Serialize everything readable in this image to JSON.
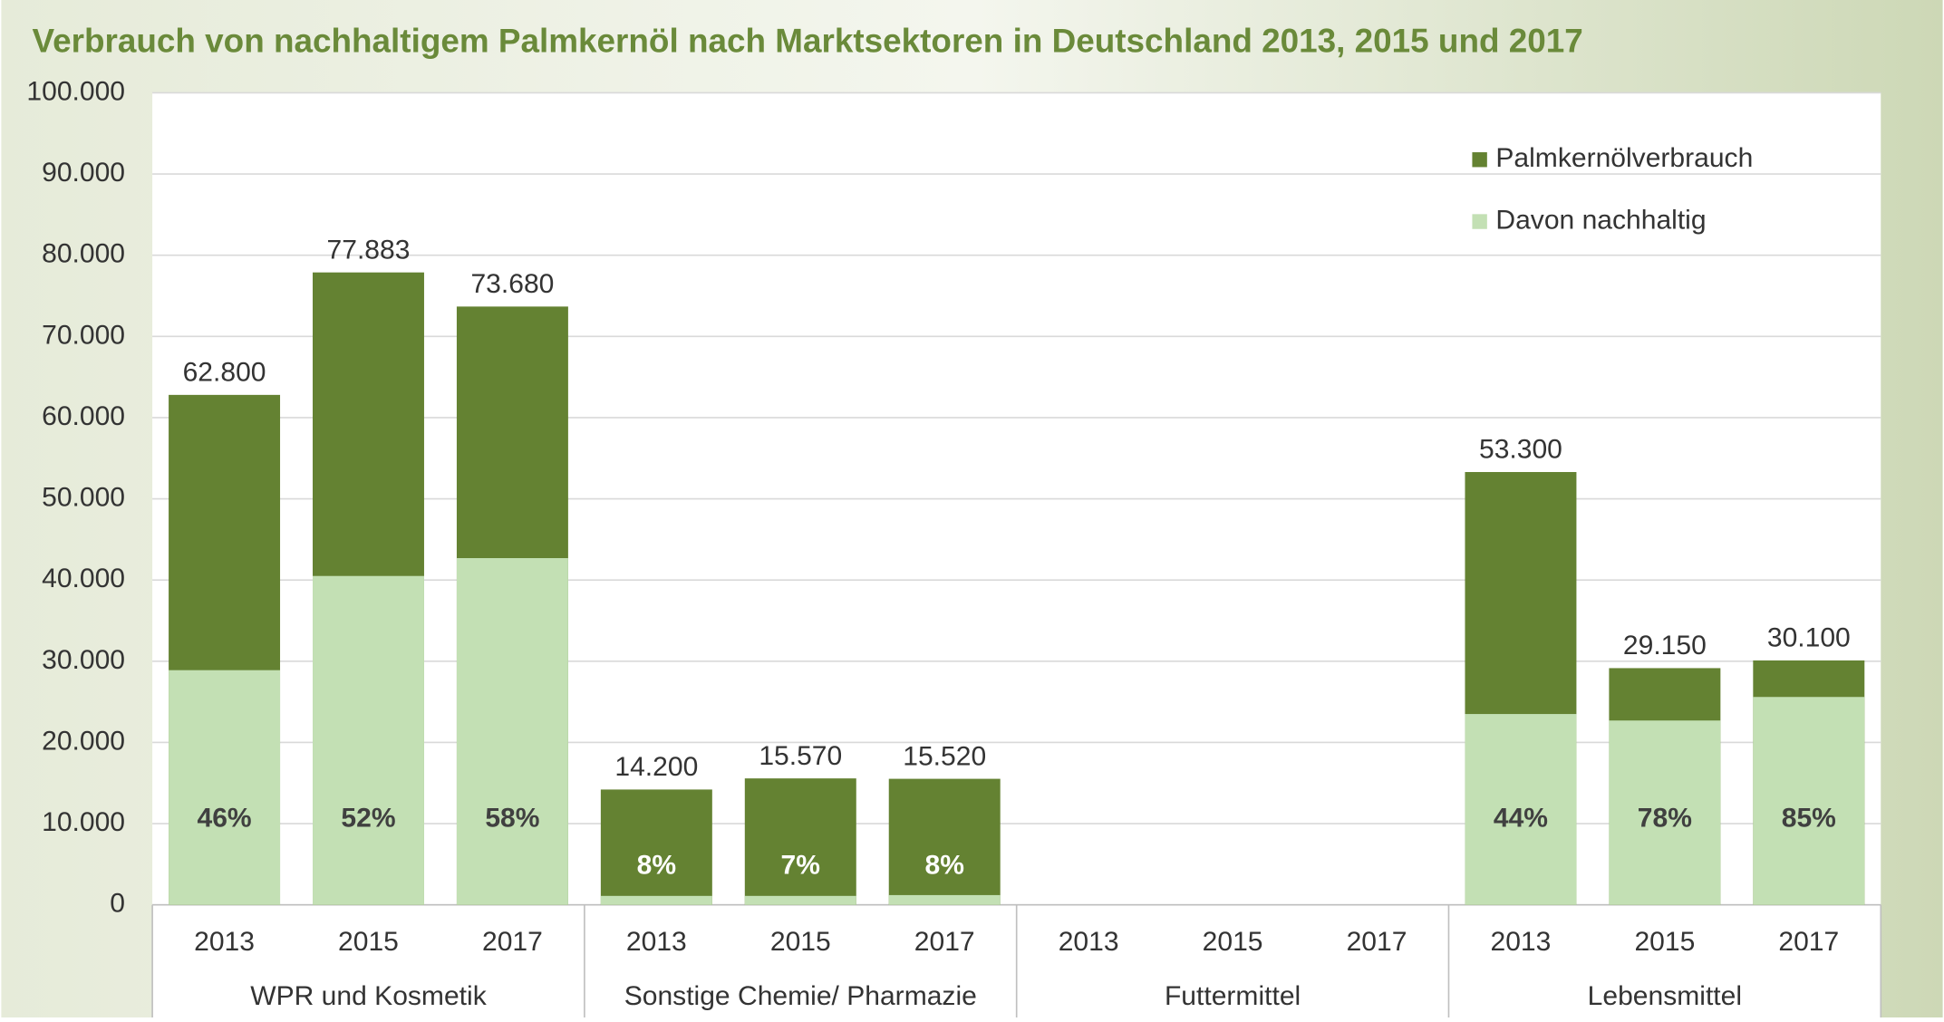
{
  "chart_data": {
    "type": "bar",
    "title": "Verbrauch von nachhaltigem Palmkernöl nach Marktsektoren in Deutschland 2013, 2015 und 2017",
    "categories": [
      "2013",
      "2015",
      "2017",
      "2013",
      "2015",
      "2017",
      "2013",
      "2015",
      "2017",
      "2013",
      "2015",
      "2017"
    ],
    "groups": [
      "WPR und Kosmetik",
      "Sonstige Chemie/ Pharmazie",
      "Futtermittel",
      "Lebensmittel"
    ],
    "series": [
      {
        "name": "Davon nachhaltig",
        "color": "#c3e0b4",
        "values": [
          28900,
          40500,
          42700,
          1100,
          1100,
          1200,
          null,
          null,
          null,
          23500,
          22700,
          25600
        ],
        "percent_labels": [
          "46%",
          "52%",
          "58%",
          "8%",
          "7%",
          "8%",
          null,
          null,
          null,
          "44%",
          "78%",
          "85%"
        ]
      },
      {
        "name": "Palmkernölverbrauch",
        "color": "#648232",
        "values": [
          62800,
          77883,
          73680,
          14200,
          15570,
          15520,
          null,
          null,
          null,
          53300,
          29150,
          30100
        ],
        "value_labels": [
          "62.800",
          "77.883",
          "73.680",
          "14.200",
          "15.570",
          "15.520",
          null,
          null,
          null,
          "53.300",
          "29.150",
          "30.100"
        ]
      }
    ],
    "ylim": [
      0,
      100000
    ],
    "yticks": [
      0,
      {
        "value": 10000,
        "label": "10.000"
      },
      {
        "value": 20000,
        "label": "20.000"
      },
      {
        "value": 30000,
        "label": "30.000"
      },
      {
        "value": 40000,
        "label": "40.000"
      },
      {
        "value": 50000,
        "label": "50.000"
      },
      {
        "value": 60000,
        "label": "60.000"
      },
      {
        "value": 70000,
        "label": "70.000"
      },
      {
        "value": 80000,
        "label": "80.000"
      },
      {
        "value": 90000,
        "label": "90.000"
      },
      {
        "value": 100000,
        "label": "100.000"
      }
    ],
    "grid": true,
    "legend": "top-right"
  }
}
